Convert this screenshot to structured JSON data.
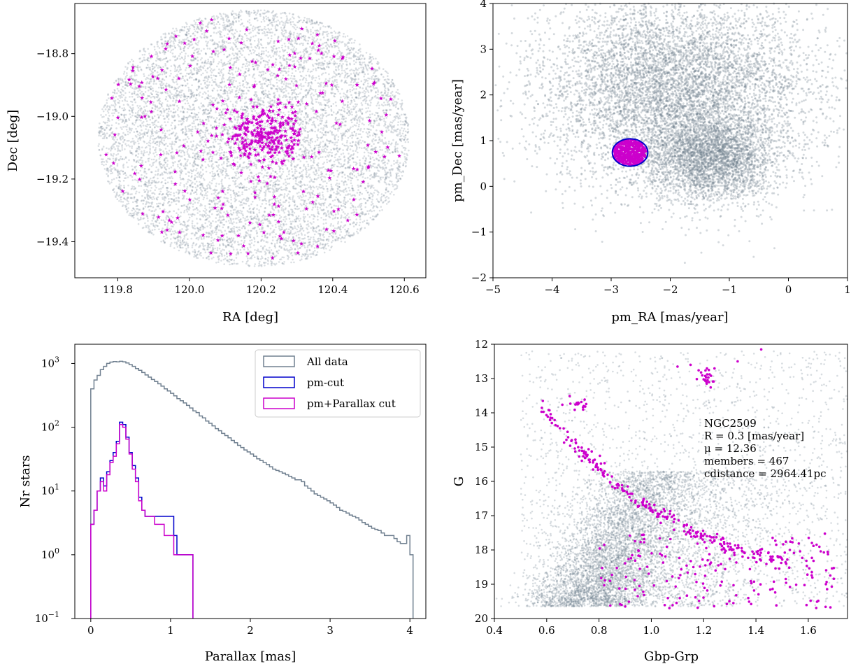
{
  "colors": {
    "background_points": "#708090",
    "members": "#cc00cc",
    "pm_cut": "#0000cc",
    "all_data": "#708090"
  },
  "chart_data": [
    {
      "id": "sky",
      "type": "scatter",
      "xlabel": "RA [deg]",
      "ylabel": "Dec [deg]",
      "xlim": [
        119.68,
        120.66
      ],
      "ylim": [
        -19.515,
        -18.64
      ],
      "xticks": [
        119.8,
        120.0,
        120.2,
        120.4,
        120.6
      ],
      "xtick_labels": [
        "119.8",
        "120.0",
        "120.2",
        "120.4",
        "120.6"
      ],
      "yticks": [
        -18.8,
        -19.0,
        -19.2,
        -19.4
      ],
      "ytick_labels": [
        "−18.8",
        "−19.0",
        "−19.2",
        "−19.4"
      ],
      "field": {
        "center": [
          120.18,
          -19.07
        ],
        "ra_half_width": 0.435,
        "dec_half_height": 0.41
      },
      "cluster_center": [
        120.2,
        -19.06
      ],
      "series": [
        {
          "marker": "dot",
          "count": 9000,
          "distribution": "uniform within field ellipse"
        },
        {
          "marker": "star",
          "count": 467,
          "distribution": "concentrated at cluster center"
        }
      ],
      "grid": false
    },
    {
      "id": "proper-motion",
      "type": "scatter",
      "xlabel": "pm_RA [mas/year]",
      "ylabel": "pm_Dec [mas/year]",
      "xlim": [
        -5,
        1
      ],
      "ylim": [
        -2,
        4
      ],
      "xticks": [
        -5,
        -4,
        -3,
        -2,
        -1,
        0,
        1
      ],
      "xtick_labels": [
        "−5",
        "−4",
        "−3",
        "−2",
        "−1",
        "0",
        "1"
      ],
      "yticks": [
        -2,
        -1,
        0,
        1,
        2,
        3,
        4
      ],
      "ytick_labels": [
        "−2",
        "−1",
        "0",
        "1",
        "2",
        "3",
        "4"
      ],
      "field_clumps": [
        {
          "center": [
            -1.9,
            2.1
          ],
          "sigma": [
            1.15,
            1.05
          ]
        },
        {
          "center": [
            -1.3,
            0.6
          ],
          "sigma": [
            0.55,
            0.45
          ]
        }
      ],
      "cluster_pm": [
        -2.68,
        0.74
      ],
      "selection_circle_radius": 0.3,
      "series": [
        {
          "marker": "dot",
          "count": 10000
        },
        {
          "marker": "dot",
          "count": 600,
          "inside": "selection circle"
        }
      ],
      "grid": false
    },
    {
      "id": "parallax-hist",
      "type": "histogram",
      "xlabel": "Parallax [mas]",
      "ylabel": "Nr stars",
      "xlim": [
        -0.2,
        4.2
      ],
      "yscale": "log",
      "ylim": [
        0.1,
        2000
      ],
      "xticks": [
        0,
        1,
        2,
        3,
        4
      ],
      "xtick_labels": [
        "0",
        "1",
        "2",
        "3",
        "4"
      ],
      "yticks": [
        0.1,
        1,
        10,
        100,
        1000
      ],
      "ytick_labels": [
        [
          "10",
          "−1"
        ],
        [
          "10",
          "0"
        ],
        [
          "10",
          "1"
        ],
        [
          "10",
          "2"
        ],
        [
          "10",
          "3"
        ]
      ],
      "bin_start": 0,
      "bin_width": 0.04,
      "legend_position": "top-right",
      "series": [
        {
          "name": "All data",
          "color": "#708090",
          "counts": [
            400,
            550,
            650,
            800,
            900,
            1000,
            1050,
            1070,
            1060,
            1080,
            1060,
            1020,
            960,
            900,
            830,
            780,
            720,
            660,
            610,
            560,
            520,
            480,
            440,
            400,
            370,
            340,
            310,
            280,
            260,
            240,
            220,
            200,
            180,
            170,
            150,
            140,
            125,
            115,
            105,
            95,
            88,
            80,
            74,
            68,
            62,
            57,
            52,
            48,
            44,
            41,
            38,
            35,
            32,
            30,
            28,
            26,
            24,
            22,
            21,
            20,
            19,
            18,
            17,
            16,
            15,
            15,
            14,
            12,
            11,
            10,
            9,
            8.5,
            8,
            7.5,
            7,
            6.5,
            6,
            5.5,
            5,
            4.8,
            4.5,
            4.2,
            4,
            3.8,
            3.5,
            3.2,
            3,
            2.8,
            2.6,
            2.5,
            2.4,
            2.2,
            2,
            2,
            2,
            1.8,
            1.6,
            1.5,
            1.5,
            2,
            1
          ]
        },
        {
          "name": "pm-cut",
          "color": "#0000cc",
          "counts": [
            3,
            5,
            10,
            16,
            12,
            20,
            30,
            40,
            60,
            120,
            110,
            70,
            40,
            25,
            16,
            8,
            5,
            4,
            4,
            4,
            4,
            4,
            4,
            4,
            4,
            4,
            2,
            1,
            1,
            1,
            1,
            1
          ]
        },
        {
          "name": "pm+Parallax cut",
          "color": "#cc00cc",
          "counts": [
            3,
            5,
            10,
            14,
            10,
            18,
            28,
            35,
            55,
            110,
            100,
            65,
            38,
            22,
            14,
            7,
            5,
            4,
            4,
            4,
            3,
            3,
            3,
            2,
            2,
            2,
            1,
            1,
            1,
            1,
            1,
            1
          ]
        }
      ],
      "grid": false
    },
    {
      "id": "cmd",
      "type": "scatter",
      "xlabel": "Gbp-Grp",
      "ylabel": "G",
      "xlim": [
        0.4,
        1.75
      ],
      "ylim": [
        20,
        12
      ],
      "y_inverted": true,
      "xticks": [
        0.4,
        0.6,
        0.8,
        1.0,
        1.2,
        1.4,
        1.6
      ],
      "xtick_labels": [
        "0.4",
        "0.6",
        "0.8",
        "1.0",
        "1.2",
        "1.4",
        "1.6"
      ],
      "yticks": [
        12,
        13,
        14,
        15,
        16,
        17,
        18,
        19,
        20
      ],
      "ytick_labels": [
        "12",
        "13",
        "14",
        "15",
        "16",
        "17",
        "18",
        "19",
        "20"
      ],
      "series": [
        {
          "marker": "dot",
          "count": 9000
        },
        {
          "marker": "dot",
          "count": 467
        }
      ],
      "annotation_lines": [
        "NGC2509",
        "R = 0.3 [mas/year]",
        "μ = 12.36",
        "members = 467",
        "cdistance = 2964.41pc"
      ],
      "grid": false
    }
  ]
}
